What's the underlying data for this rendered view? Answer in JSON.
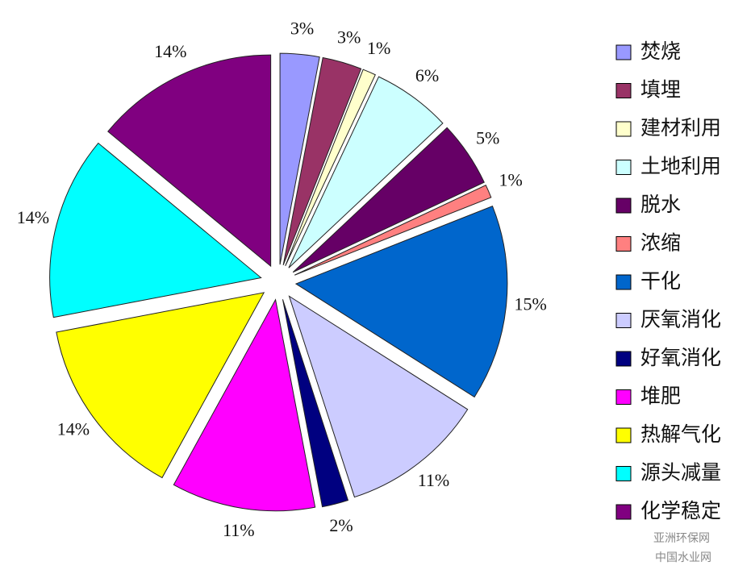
{
  "chart_data": {
    "type": "pie",
    "categories": [
      "焚烧",
      "填埋",
      "建材利用",
      "土地利用",
      "脱水",
      "浓缩",
      "干化",
      "厌氧消化",
      "好氧消化",
      "堆肥",
      "热解气化",
      "源头减量",
      "化学稳定"
    ],
    "values": [
      3,
      3,
      1,
      6,
      5,
      1,
      15,
      11,
      2,
      11,
      14,
      14,
      14
    ],
    "value_labels": [
      "3%",
      "3%",
      "1%",
      "6%",
      "5%",
      "1%",
      "15%",
      "11%",
      "2%",
      "11%",
      "14%",
      "14%",
      "14%"
    ],
    "colors": [
      "#9999ff",
      "#993366",
      "#ffffcc",
      "#ccffff",
      "#660066",
      "#ff8080",
      "#0066cc",
      "#ccccff",
      "#000080",
      "#ff00ff",
      "#ffff00",
      "#00ffff",
      "#800080"
    ],
    "legend": "right",
    "watermark": [
      "亚洲环保网",
      "中国水业网"
    ]
  }
}
